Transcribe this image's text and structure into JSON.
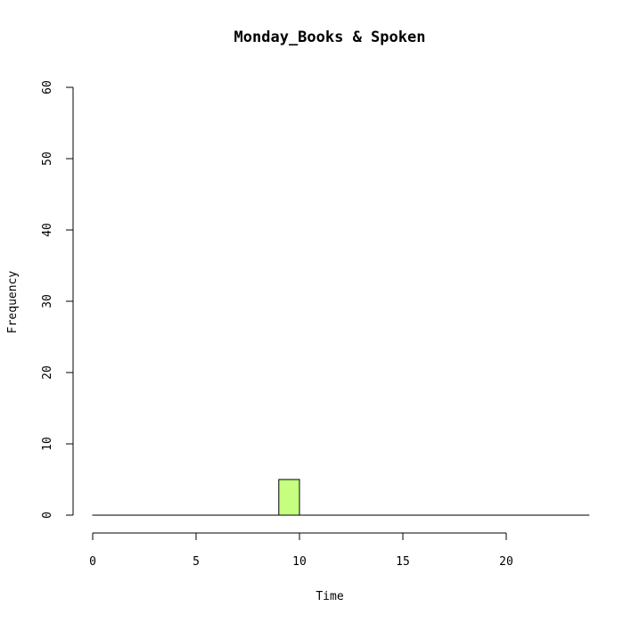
{
  "chart_data": {
    "type": "bar",
    "title": "Monday_Books & Spoken",
    "xlabel": "Time",
    "ylabel": "Frequency",
    "xlim": [
      0,
      24
    ],
    "ylim": [
      0,
      60
    ],
    "x_ticks": [
      "0",
      "5",
      "10",
      "15",
      "20"
    ],
    "y_ticks": [
      "0",
      "10",
      "20",
      "30",
      "40",
      "50",
      "60"
    ],
    "bin_width": 1,
    "bins": [
      {
        "x0": 0,
        "x1": 1,
        "count": 0
      },
      {
        "x0": 1,
        "x1": 2,
        "count": 0
      },
      {
        "x0": 2,
        "x1": 3,
        "count": 0
      },
      {
        "x0": 3,
        "x1": 4,
        "count": 0
      },
      {
        "x0": 4,
        "x1": 5,
        "count": 0
      },
      {
        "x0": 5,
        "x1": 6,
        "count": 0
      },
      {
        "x0": 6,
        "x1": 7,
        "count": 0
      },
      {
        "x0": 7,
        "x1": 8,
        "count": 0
      },
      {
        "x0": 8,
        "x1": 9,
        "count": 0
      },
      {
        "x0": 9,
        "x1": 10,
        "count": 5
      },
      {
        "x0": 10,
        "x1": 11,
        "count": 0
      },
      {
        "x0": 11,
        "x1": 12,
        "count": 0
      },
      {
        "x0": 12,
        "x1": 13,
        "count": 0
      },
      {
        "x0": 13,
        "x1": 14,
        "count": 0
      },
      {
        "x0": 14,
        "x1": 15,
        "count": 0
      },
      {
        "x0": 15,
        "x1": 16,
        "count": 0
      },
      {
        "x0": 16,
        "x1": 17,
        "count": 0
      },
      {
        "x0": 17,
        "x1": 18,
        "count": 0
      },
      {
        "x0": 18,
        "x1": 19,
        "count": 0
      },
      {
        "x0": 19,
        "x1": 20,
        "count": 0
      },
      {
        "x0": 20,
        "x1": 21,
        "count": 0
      },
      {
        "x0": 21,
        "x1": 22,
        "count": 0
      },
      {
        "x0": 22,
        "x1": 23,
        "count": 0
      },
      {
        "x0": 23,
        "x1": 24,
        "count": 0
      }
    ],
    "bar_color": "#c6ff7f",
    "grid": false,
    "legend": "none"
  }
}
